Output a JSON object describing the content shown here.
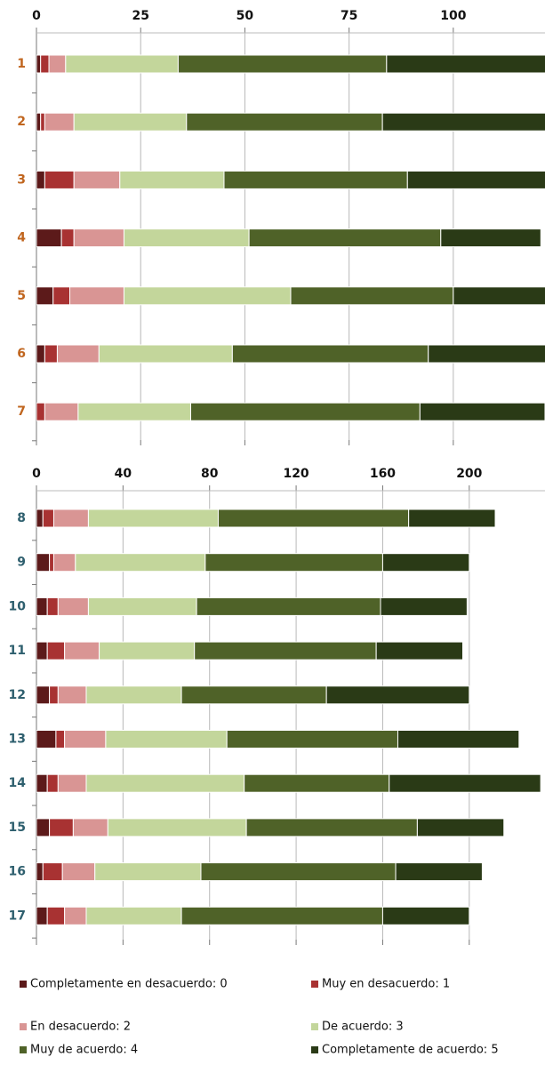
{
  "chart_data": [
    {
      "type": "bar",
      "orientation": "horizontal",
      "stacked": true,
      "categories": [
        "1",
        "2",
        "3",
        "4",
        "5",
        "6",
        "7"
      ],
      "category_color": "#c0651e",
      "xlim": [
        0,
        122
      ],
      "xticks": [
        0,
        25,
        50,
        75,
        100
      ],
      "grid": true,
      "series": [
        {
          "name": "Completamente en desacuerdo: 0",
          "color": "#5c1a1a",
          "values": [
            1,
            1,
            2,
            6,
            4,
            2,
            0
          ]
        },
        {
          "name": "Muy en desacuerdo: 1",
          "color": "#a83232",
          "values": [
            2,
            1,
            7,
            3,
            4,
            3,
            2
          ]
        },
        {
          "name": "En desacuerdo: 2",
          "color": "#d99594",
          "values": [
            4,
            7,
            11,
            12,
            13,
            10,
            8
          ]
        },
        {
          "name": "De acuerdo: 3",
          "color": "#c3d69b",
          "values": [
            27,
            27,
            25,
            30,
            40,
            32,
            27
          ]
        },
        {
          "name": "Muy de acuerdo: 4",
          "color": "#4f6228",
          "values": [
            50,
            47,
            44,
            46,
            39,
            47,
            55
          ]
        },
        {
          "name": "Completamente de acuerdo: 5",
          "color": "#2a3a16",
          "values": [
            40,
            40,
            35,
            24,
            25,
            30,
            30
          ]
        }
      ]
    },
    {
      "type": "bar",
      "orientation": "horizontal",
      "stacked": true,
      "categories": [
        "8",
        "9",
        "10",
        "11",
        "12",
        "13",
        "14",
        "15",
        "16",
        "17"
      ],
      "category_color": "#2e5f6e",
      "xlim": [
        0,
        235
      ],
      "xticks": [
        0,
        40,
        80,
        120,
        160,
        200
      ],
      "grid": true,
      "series": [
        {
          "color": "#5c1a1a",
          "values": [
            3,
            6,
            5,
            5,
            6,
            9,
            5,
            6,
            3,
            5
          ]
        },
        {
          "color": "#a83232",
          "values": [
            5,
            2,
            5,
            8,
            4,
            4,
            5,
            11,
            9,
            8
          ]
        },
        {
          "color": "#d99594",
          "values": [
            16,
            10,
            14,
            16,
            13,
            19,
            13,
            16,
            15,
            10
          ]
        },
        {
          "color": "#c3d69b",
          "values": [
            60,
            60,
            50,
            44,
            44,
            56,
            73,
            64,
            49,
            44
          ]
        },
        {
          "color": "#4f6228",
          "values": [
            88,
            82,
            85,
            84,
            67,
            79,
            67,
            79,
            90,
            93
          ]
        },
        {
          "color": "#2a3a16",
          "values": [
            40,
            40,
            40,
            40,
            66,
            56,
            70,
            40,
            40,
            40
          ]
        }
      ]
    }
  ]
}
